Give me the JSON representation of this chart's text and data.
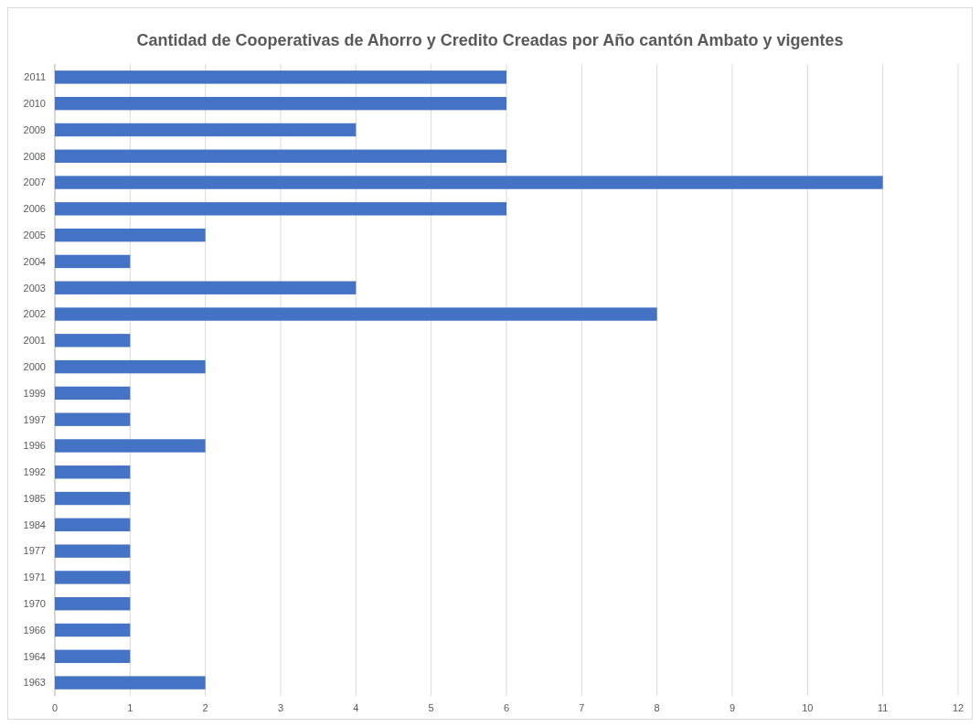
{
  "chart_data": {
    "type": "bar",
    "orientation": "horizontal",
    "title": "Cantidad de Cooperativas de Ahorro y Credito Creadas por Año cantón Ambato y vigentes",
    "categories": [
      "2011",
      "2010",
      "2009",
      "2008",
      "2007",
      "2006",
      "2005",
      "2004",
      "2003",
      "2002",
      "2001",
      "2000",
      "1999",
      "1997",
      "1996",
      "1992",
      "1985",
      "1984",
      "1977",
      "1971",
      "1970",
      "1966",
      "1964",
      "1963"
    ],
    "values": [
      6,
      6,
      4,
      6,
      11,
      6,
      2,
      1,
      4,
      8,
      1,
      2,
      1,
      1,
      2,
      1,
      1,
      1,
      1,
      1,
      1,
      1,
      1,
      2
    ],
    "color": "#4472c4",
    "xlim": [
      0,
      12
    ],
    "xticks": [
      0,
      1,
      2,
      3,
      4,
      5,
      6,
      7,
      8,
      9,
      10,
      11,
      12
    ],
    "grid": "x"
  }
}
